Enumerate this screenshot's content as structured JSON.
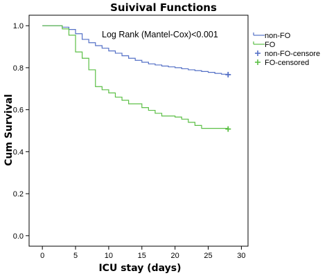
{
  "chart_data": {
    "type": "line",
    "title": "Suivival Functions",
    "xlabel": "ICU stay (days)",
    "ylabel": "Cum Survival",
    "xlim": [
      -2,
      31
    ],
    "ylim": [
      -0.05,
      1.05
    ],
    "x_ticks": [
      "0",
      "5",
      "10",
      "15",
      "20",
      "25",
      "30"
    ],
    "y_ticks": [
      "0.0",
      "0.2",
      "0.4",
      "0.6",
      "0.8",
      "1.0"
    ],
    "annotation": "Log Rank (Mantel-Cox)<0.001",
    "legend_position": "top-right",
    "series": [
      {
        "name": "non-FO",
        "color": "#5470c6",
        "step": true,
        "points": [
          [
            0,
            1.0
          ],
          [
            3,
            0.993
          ],
          [
            4,
            0.982
          ],
          [
            5,
            0.962
          ],
          [
            6,
            0.935
          ],
          [
            7,
            0.919
          ],
          [
            8,
            0.905
          ],
          [
            9,
            0.893
          ],
          [
            10,
            0.88
          ],
          [
            11,
            0.869
          ],
          [
            12,
            0.857
          ],
          [
            13,
            0.845
          ],
          [
            14,
            0.835
          ],
          [
            15,
            0.826
          ],
          [
            16,
            0.818
          ],
          [
            17,
            0.813
          ],
          [
            18,
            0.808
          ],
          [
            19,
            0.804
          ],
          [
            20,
            0.8
          ],
          [
            21,
            0.795
          ],
          [
            22,
            0.79
          ],
          [
            23,
            0.786
          ],
          [
            24,
            0.782
          ],
          [
            25,
            0.778
          ],
          [
            26,
            0.773
          ],
          [
            27,
            0.769
          ],
          [
            28,
            0.767
          ]
        ]
      },
      {
        "name": "FO",
        "color": "#5bbf45",
        "step": true,
        "points": [
          [
            0,
            1.0
          ],
          [
            3,
            0.985
          ],
          [
            4,
            0.955
          ],
          [
            5,
            0.875
          ],
          [
            6,
            0.845
          ],
          [
            7,
            0.79
          ],
          [
            8,
            0.71
          ],
          [
            9,
            0.695
          ],
          [
            10,
            0.68
          ],
          [
            11,
            0.66
          ],
          [
            12,
            0.645
          ],
          [
            13,
            0.628
          ],
          [
            15,
            0.61
          ],
          [
            16,
            0.597
          ],
          [
            17,
            0.583
          ],
          [
            18,
            0.57
          ],
          [
            20,
            0.565
          ],
          [
            21,
            0.555
          ],
          [
            22,
            0.54
          ],
          [
            23,
            0.525
          ],
          [
            24,
            0.511
          ],
          [
            28,
            0.508
          ]
        ]
      }
    ],
    "censored": [
      {
        "name": "non-FO-censore",
        "color": "#5470c6",
        "x": 28,
        "y": 0.767
      },
      {
        "name": "FO-censored",
        "color": "#5bbf45",
        "x": 28,
        "y": 0.508
      }
    ],
    "legend": [
      {
        "label": "non-FO",
        "color": "#5470c6",
        "symbol": "line"
      },
      {
        "label": "FO",
        "color": "#5bbf45",
        "symbol": "line"
      },
      {
        "label": "non-FO-censore",
        "color": "#5470c6",
        "symbol": "plus"
      },
      {
        "label": "FO-censored",
        "color": "#5bbf45",
        "symbol": "plus"
      }
    ]
  }
}
